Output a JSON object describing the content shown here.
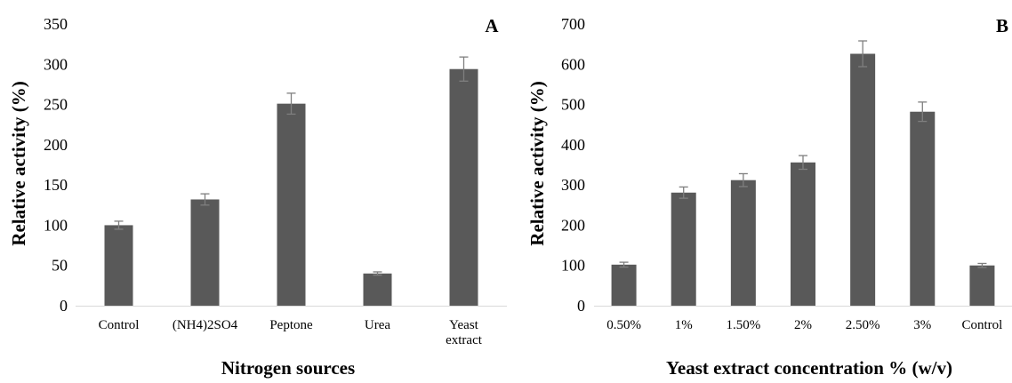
{
  "chart_data": [
    {
      "type": "bar",
      "panel_label": "A",
      "categories": [
        "Control",
        "(NH4)2SO4",
        "Peptone",
        "Urea",
        "Yeast\nextract"
      ],
      "values": [
        100,
        132,
        251,
        40,
        294
      ],
      "errors": [
        5,
        7,
        13,
        2,
        15
      ],
      "xlabel": "Nitrogen sources",
      "ylabel": "Relative activity (%)",
      "ylim": [
        0,
        350
      ],
      "yticks": [
        0,
        50,
        100,
        150,
        200,
        250,
        300,
        350
      ],
      "grid": false,
      "bar_color": "#595959",
      "error_color": "#7f7f7f"
    },
    {
      "type": "bar",
      "panel_label": "B",
      "categories": [
        "0.50%",
        "1%",
        "1.50%",
        "2%",
        "2.50%",
        "3%",
        "Control"
      ],
      "values": [
        102,
        281,
        312,
        356,
        626,
        482,
        100
      ],
      "errors": [
        6,
        14,
        16,
        17,
        32,
        24,
        5
      ],
      "xlabel": "Yeast extract concentration % (w/v)",
      "ylabel": "Relative activity (%)",
      "ylim": [
        0,
        700
      ],
      "yticks": [
        0,
        100,
        200,
        300,
        400,
        500,
        600,
        700
      ],
      "grid": false,
      "bar_color": "#595959",
      "error_color": "#7f7f7f"
    }
  ]
}
